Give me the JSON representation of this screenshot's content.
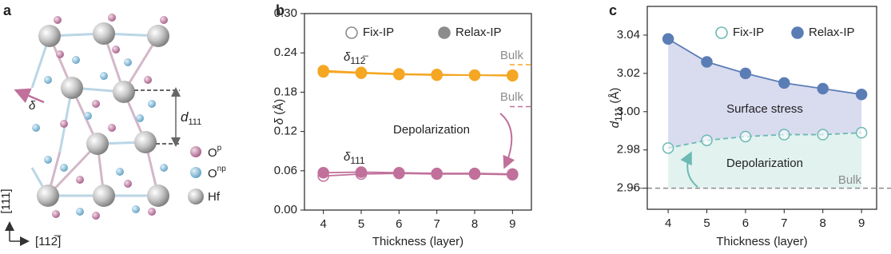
{
  "panel_a": {
    "panel_label": "a",
    "delta": "δ",
    "d_symbol": "d",
    "d_subscript": "111",
    "legend": [
      {
        "symbol": "O",
        "superscript": "p"
      },
      {
        "symbol": "O",
        "superscript": "np"
      },
      {
        "symbol": "Hf"
      }
    ],
    "axis_vertical": "[111]",
    "axis_horizontal": "[112̅]"
  },
  "chart_data": [
    {
      "type": "line",
      "panel_label": "b",
      "xlabel": "Thickness (layer)",
      "ylabel": {
        "symbol": "δ",
        "unit": "(Å)"
      },
      "x": [
        4,
        5,
        6,
        7,
        8,
        9
      ],
      "xlim": [
        3.5,
        9.5
      ],
      "xticks": [
        4,
        5,
        6,
        7,
        8,
        9
      ],
      "ylim": [
        0,
        0.3
      ],
      "yticks": [
        {
          "value": 0,
          "label": "0.00"
        },
        0.06,
        0.12,
        0.18,
        0.24,
        {
          "value": 0.3,
          "label": "0.30"
        }
      ],
      "legend": [
        {
          "name": "Fix-IP",
          "marker": "open",
          "color": "#8c8c8c"
        },
        {
          "name": "Relax-IP",
          "marker": "filled",
          "color": "#8c8c8c"
        }
      ],
      "series": [
        {
          "marker": "open",
          "dashed": false,
          "color": "#f5a623",
          "values": [
            0.213,
            0.21,
            0.208,
            0.207,
            0.206,
            0.206
          ]
        },
        {
          "marker": "filled",
          "dashed": false,
          "color": "#f5a623",
          "values": [
            0.211,
            0.209,
            0.207,
            0.206,
            0.206,
            0.205
          ]
        },
        {
          "marker": "open",
          "dashed": false,
          "color": "#c0709b",
          "values": [
            0.052,
            0.055,
            0.056,
            0.055,
            0.055,
            0.054
          ]
        },
        {
          "marker": "filled",
          "dashed": false,
          "color": "#c0709b",
          "values": [
            0.057,
            0.058,
            0.057,
            0.056,
            0.056,
            0.055
          ]
        }
      ],
      "series_labels": [
        {
          "symbol": "δ",
          "subscript": "112̅"
        },
        {
          "symbol": "δ",
          "subscript": "111"
        }
      ],
      "reference_lines": [
        {
          "label": "Bulk",
          "value": 0.222,
          "color": "#f5a623"
        },
        {
          "label": "Bulk",
          "value": 0.158,
          "color": "#c0709b"
        }
      ],
      "annotations": [
        "Depolarization"
      ]
    },
    {
      "type": "line",
      "panel_label": "c",
      "xlabel": "Thickness (layer)",
      "ylabel": {
        "symbol": "d",
        "subscript": "111",
        "unit": "(Å)"
      },
      "x": [
        4,
        5,
        6,
        7,
        8,
        9
      ],
      "xlim": [
        3.46,
        9.39
      ],
      "xticks": [
        4,
        5,
        6,
        7,
        8,
        9
      ],
      "ylim": [
        2.949,
        3.055
      ],
      "yticks": [
        2.96,
        2.98,
        {
          "value": 3,
          "label": "3.00"
        },
        3.02,
        3.04
      ],
      "legend": [
        {
          "name": "Fix-IP",
          "marker": "open",
          "color": "#6cbab3"
        },
        {
          "name": "Relax-IP",
          "marker": "filled",
          "color": "#5b7db5"
        }
      ],
      "series": [
        {
          "marker": "open",
          "dashed": true,
          "color": "#6cbab3",
          "values": [
            2.981,
            2.985,
            2.987,
            2.988,
            2.988,
            2.989
          ]
        },
        {
          "marker": "filled",
          "dashed": false,
          "color": "#5b7db5",
          "values": [
            3.038,
            3.026,
            3.02,
            3.015,
            3.012,
            3.009
          ]
        }
      ],
      "reference_lines": [
        {
          "label": "Bulk",
          "value": 2.96,
          "color": "#8c8c8c"
        }
      ],
      "areas": [
        {
          "label": "Surface stress",
          "color": "#d9dbef"
        },
        {
          "label": "Depolarization",
          "color": "#e1f2ef"
        }
      ]
    }
  ]
}
